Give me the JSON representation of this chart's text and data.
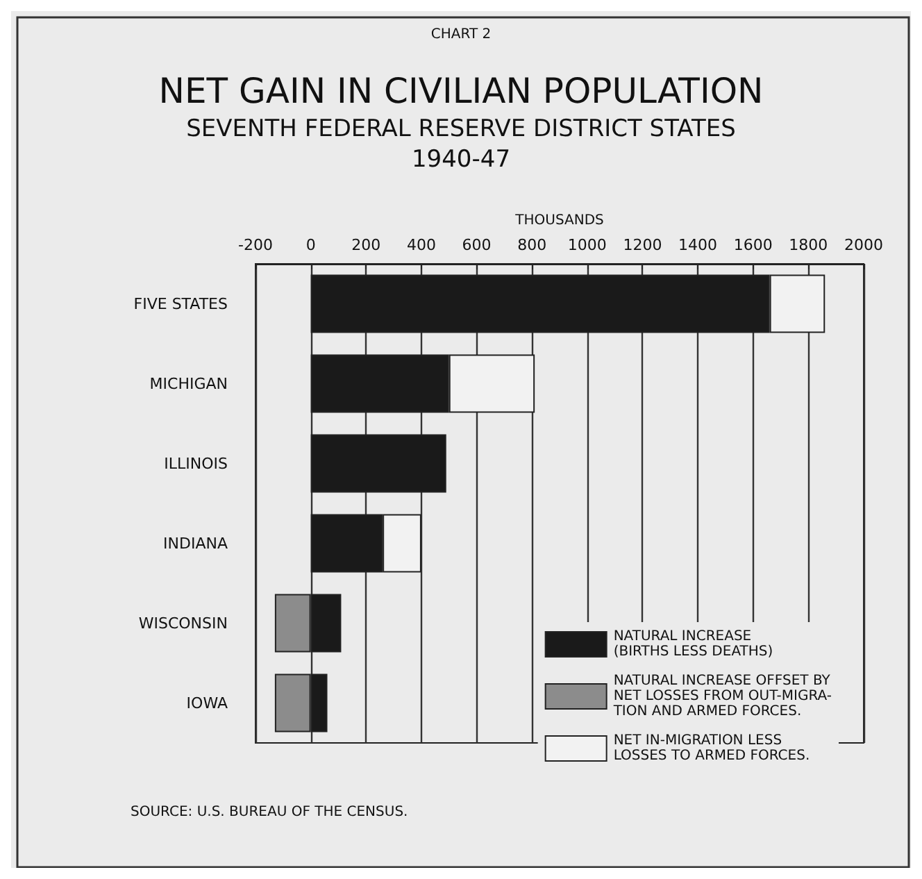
{
  "chart_data": {
    "type": "bar",
    "orientation": "horizontal",
    "stacked": true,
    "title": "NET GAIN IN CIVILIAN POPULATION",
    "subtitle": "SEVENTH FEDERAL RESERVE DISTRICT STATES\n1940-47",
    "xlabel": "THOUSANDS",
    "annotations": [
      "CHART 2",
      "SOURCE: U.S. BUREAU OF THE CENSUS."
    ],
    "categories": [
      "FIVE STATES",
      "MICHIGAN",
      "ILLINOIS",
      "INDIANA",
      "WISCONSIN",
      "IOWA"
    ],
    "series": [
      {
        "name": "NATURAL INCREASE\n(BIRTHS LESS DEATHS)",
        "color": "#1a1a1a",
        "values": [
          1660,
          500,
          490,
          260,
          110,
          60
        ]
      },
      {
        "name": "NATURAL INCREASE OFFSET BY\nNET LOSSES FROM OUT-MIGRA-\nTION AND ARMED FORCES.",
        "color": "#8c8c8c",
        "values": [
          null,
          null,
          null,
          null,
          -130,
          -130
        ]
      },
      {
        "name": "NET IN-MIGRATION LESS\nLOSSES TO ARMED FORCES.",
        "color": "#f2f2f2",
        "values": [
          200,
          310,
          null,
          140,
          null,
          null
        ]
      }
    ],
    "xlim": [
      -200,
      2000
    ],
    "xticks": [
      -200,
      0,
      200,
      400,
      600,
      800,
      1000,
      1200,
      1400,
      1600,
      1800,
      2000
    ],
    "grid": "x",
    "legend": "bottom right"
  }
}
